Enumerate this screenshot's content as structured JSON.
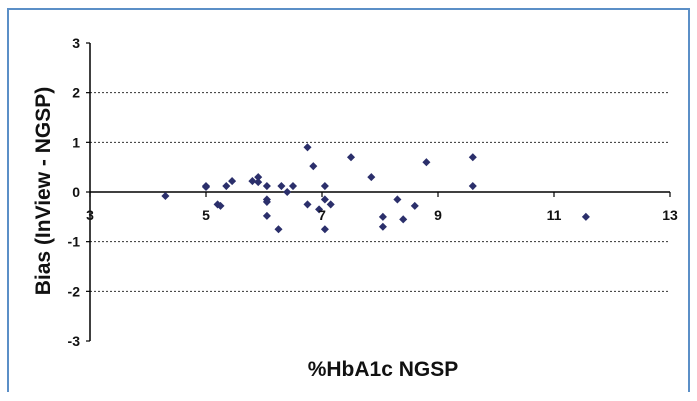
{
  "chart_data": {
    "type": "scatter",
    "title": "",
    "xlabel": "%HbA1c NGSP",
    "ylabel": "Bias (InView - NGSP)",
    "xlim": [
      3,
      13
    ],
    "ylim": [
      -3,
      3
    ],
    "x_ticks": [
      "3",
      "5",
      "7",
      "9",
      "11",
      "13"
    ],
    "y_ticks": [
      "3",
      "2",
      "1",
      "0",
      "-1",
      "-2",
      "-3"
    ],
    "grid": "dotted horizontal",
    "marker_color": "#2b2f6b",
    "points": [
      {
        "x": 4.3,
        "y": -0.08
      },
      {
        "x": 5.0,
        "y": 0.12
      },
      {
        "x": 5.0,
        "y": 0.1
      },
      {
        "x": 5.2,
        "y": -0.25
      },
      {
        "x": 5.25,
        "y": -0.28
      },
      {
        "x": 5.35,
        "y": 0.12
      },
      {
        "x": 5.45,
        "y": 0.22
      },
      {
        "x": 5.8,
        "y": 0.22
      },
      {
        "x": 5.9,
        "y": 0.3
      },
      {
        "x": 5.9,
        "y": 0.2
      },
      {
        "x": 6.05,
        "y": 0.12
      },
      {
        "x": 6.05,
        "y": -0.15
      },
      {
        "x": 6.05,
        "y": -0.2
      },
      {
        "x": 6.05,
        "y": -0.48
      },
      {
        "x": 6.25,
        "y": -0.75
      },
      {
        "x": 6.3,
        "y": 0.12
      },
      {
        "x": 6.4,
        "y": 0.0
      },
      {
        "x": 6.5,
        "y": 0.12
      },
      {
        "x": 6.75,
        "y": 0.9
      },
      {
        "x": 6.75,
        "y": -0.25
      },
      {
        "x": 6.85,
        "y": 0.52
      },
      {
        "x": 6.95,
        "y": -0.35
      },
      {
        "x": 7.05,
        "y": 0.12
      },
      {
        "x": 7.05,
        "y": -0.15
      },
      {
        "x": 7.05,
        "y": -0.75
      },
      {
        "x": 7.15,
        "y": -0.25
      },
      {
        "x": 7.5,
        "y": 0.7
      },
      {
        "x": 7.85,
        "y": 0.3
      },
      {
        "x": 8.05,
        "y": -0.5
      },
      {
        "x": 8.05,
        "y": -0.7
      },
      {
        "x": 8.3,
        "y": -0.15
      },
      {
        "x": 8.4,
        "y": -0.55
      },
      {
        "x": 8.6,
        "y": -0.28
      },
      {
        "x": 8.8,
        "y": 0.6
      },
      {
        "x": 9.6,
        "y": 0.7
      },
      {
        "x": 9.6,
        "y": 0.12
      },
      {
        "x": 11.55,
        "y": -0.5
      }
    ]
  }
}
